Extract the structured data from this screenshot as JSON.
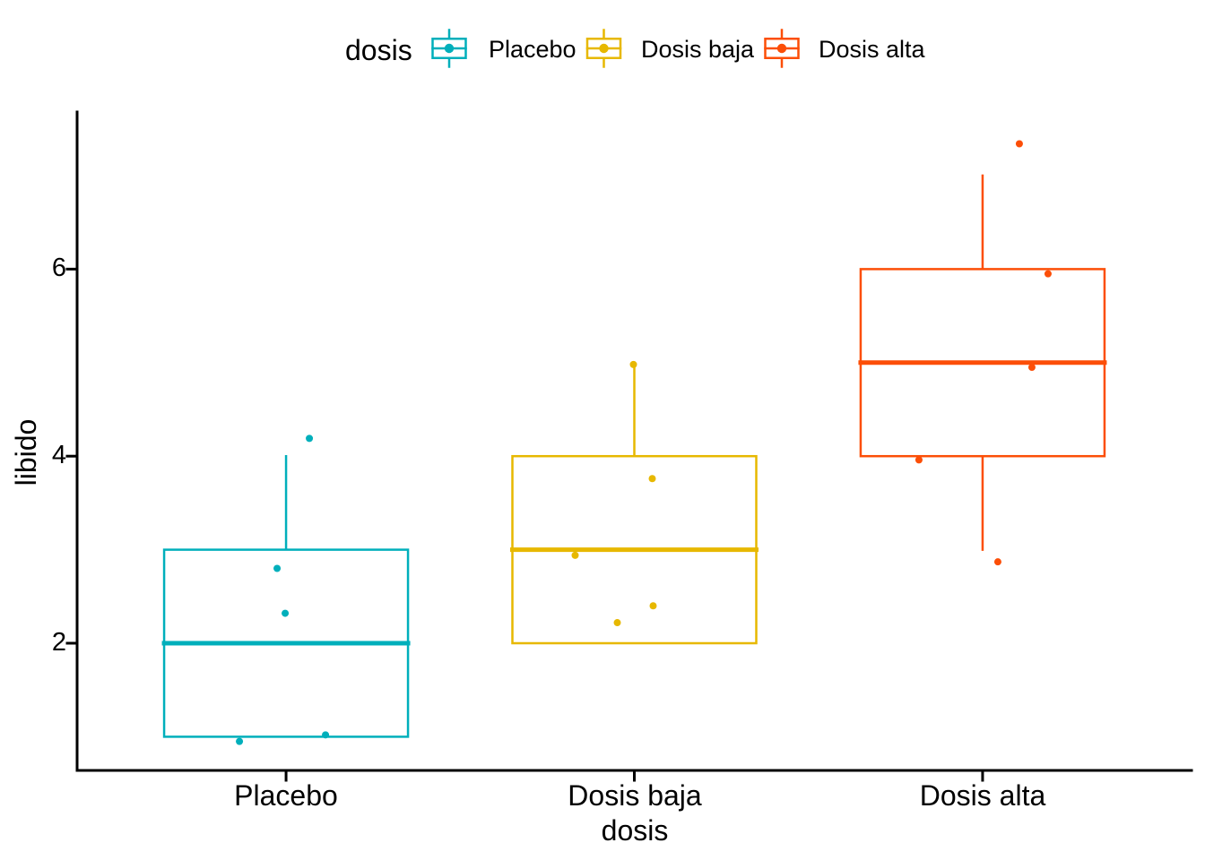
{
  "figure": {
    "background": "#FFFFFF",
    "axis_color": "#000000",
    "text_color": "#000000"
  },
  "chart_data": {
    "type": "boxplot",
    "title": "",
    "xlabel": "dosis",
    "ylabel": "libido",
    "categories": [
      "Placebo",
      "Dosis baja",
      "Dosis alta"
    ],
    "y_ticks": [
      6,
      4,
      2
    ],
    "ylim": [
      0.64,
      7.68
    ],
    "grid": false,
    "legend": {
      "title": "dosis",
      "position": "top",
      "items": [
        "Placebo",
        "Dosis baja",
        "Dosis alta"
      ]
    },
    "series": [
      {
        "name": "Placebo",
        "color": "#00AFBB",
        "box": {
          "whisker_low": 1,
          "q1": 1,
          "median": 2,
          "q3": 3,
          "whisker_high": 4
        },
        "values": [
          1,
          1,
          2,
          3,
          4
        ],
        "jittered_points": [
          {
            "dx": 26,
            "value": 4.19
          },
          {
            "dx": -10,
            "value": 2.8
          },
          {
            "dx": -1,
            "value": 2.32
          },
          {
            "dx": -52,
            "value": 0.95
          },
          {
            "dx": 44,
            "value": 1.02
          }
        ]
      },
      {
        "name": "Dosis baja",
        "color": "#E7B800",
        "box": {
          "whisker_low": 2,
          "q1": 2,
          "median": 3,
          "q3": 4,
          "whisker_high": 5
        },
        "values": [
          2,
          2,
          3,
          4,
          5
        ],
        "jittered_points": [
          {
            "dx": -1,
            "value": 4.98
          },
          {
            "dx": 20,
            "value": 3.76
          },
          {
            "dx": -66,
            "value": 2.94
          },
          {
            "dx": 21,
            "value": 2.4
          },
          {
            "dx": -19,
            "value": 2.22
          }
        ]
      },
      {
        "name": "Dosis alta",
        "color": "#FC4E07",
        "box": {
          "whisker_low": 3,
          "q1": 4,
          "median": 5,
          "q3": 6,
          "whisker_high": 7
        },
        "values": [
          3,
          4,
          5,
          6,
          7
        ],
        "jittered_points": [
          {
            "dx": 41,
            "value": 7.34
          },
          {
            "dx": 73,
            "value": 5.95
          },
          {
            "dx": 55,
            "value": 4.95
          },
          {
            "dx": -71,
            "value": 3.96
          },
          {
            "dx": 17,
            "value": 2.87
          }
        ]
      }
    ]
  }
}
